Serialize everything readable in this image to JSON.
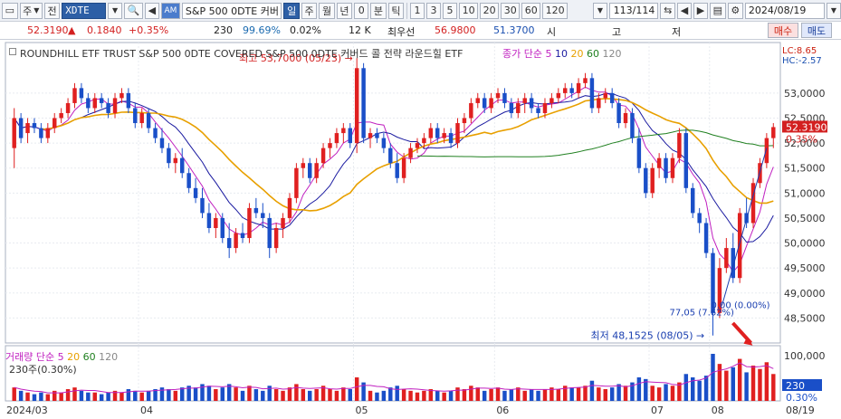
{
  "toolbar": {
    "period_week": "주",
    "prev": "전",
    "code": "XDTE",
    "name": "S&P 500 0DTE 커버",
    "am_badge": "AM",
    "periods": [
      "일",
      "주",
      "월",
      "년",
      "0",
      "분",
      "틱"
    ],
    "intervals": [
      "1",
      "3",
      "5",
      "10",
      "20",
      "30",
      "60",
      "120"
    ],
    "count": "113/114",
    "date": "2024/08/19"
  },
  "info": {
    "price": "52.3190",
    "change_arrow": "▲",
    "change": "0.1840",
    "change_pct": "+0.35%",
    "volume": "230",
    "ratio": "99.69%",
    "turnover": "0.02%",
    "k": "12 K",
    "best_label": "최우선",
    "ask": "56.9800",
    "bid": "51.3700",
    "col_open": "시",
    "col_high": "고",
    "col_low": "저",
    "buy": "매수",
    "sell": "매도"
  },
  "chart_data": {
    "type": "candlestick",
    "title": "ROUNDHILL ETF TRUST S&P 500 0DTE COVERED  S&P 500 0DTE 커버드 콜 전략 라운드힐 ETF",
    "ma_legend": {
      "label": "종가 단순",
      "periods": [
        "5",
        "10",
        "20",
        "60",
        "120"
      ],
      "colors": [
        "#c020c0",
        "#1a1aa0",
        "#e8a000",
        "#208020",
        "#888888"
      ]
    },
    "lc": "LC:8.65",
    "hc": "HC:-2.57",
    "current_price_tag": "52.3190",
    "current_pct_tag": "0.35%",
    "y_ticks": [
      "53,0000",
      "52,5000",
      "52,0000",
      "51,5000",
      "51,0000",
      "50,5000",
      "50,0000",
      "49,5000",
      "49,0000",
      "48,5000"
    ],
    "ylim": [
      48.0,
      53.65
    ],
    "x_ticks": [
      "2024/03",
      "04",
      "05",
      "06",
      "07",
      "08",
      "08/19"
    ],
    "annot_high": "최고 53,7000 (05/23)",
    "annot_low": "최저 48,1525 (08/05)",
    "annot_mid": "77,05 (7.62%)",
    "annot_zero": "0.00 (0.00%)",
    "candles": [
      [
        51.9,
        52.7,
        51.5,
        52.5
      ],
      [
        52.5,
        52.6,
        52.0,
        52.1
      ],
      [
        52.2,
        52.5,
        52.0,
        52.4
      ],
      [
        52.4,
        52.5,
        52.2,
        52.3
      ],
      [
        52.3,
        52.4,
        52.0,
        52.1
      ],
      [
        52.1,
        52.4,
        52.0,
        52.3
      ],
      [
        52.3,
        52.6,
        52.2,
        52.5
      ],
      [
        52.5,
        52.7,
        52.4,
        52.6
      ],
      [
        52.6,
        52.9,
        52.5,
        52.8
      ],
      [
        52.8,
        53.2,
        52.7,
        53.1
      ],
      [
        53.1,
        53.2,
        52.8,
        52.9
      ],
      [
        52.9,
        53.0,
        52.6,
        52.7
      ],
      [
        52.7,
        53.0,
        52.6,
        52.9
      ],
      [
        52.9,
        53.0,
        52.7,
        52.8
      ],
      [
        52.8,
        52.9,
        52.5,
        52.6
      ],
      [
        52.6,
        53.0,
        52.5,
        52.9
      ],
      [
        52.9,
        53.1,
        52.8,
        53.0
      ],
      [
        53.0,
        53.1,
        52.6,
        52.7
      ],
      [
        52.7,
        52.8,
        52.3,
        52.4
      ],
      [
        52.4,
        52.7,
        52.3,
        52.6
      ],
      [
        52.6,
        52.7,
        52.2,
        52.3
      ],
      [
        52.3,
        52.4,
        52.0,
        52.1
      ],
      [
        52.1,
        52.3,
        51.8,
        51.9
      ],
      [
        51.9,
        52.0,
        51.5,
        51.6
      ],
      [
        51.6,
        51.8,
        51.4,
        51.7
      ],
      [
        51.7,
        51.9,
        51.3,
        51.4
      ],
      [
        51.4,
        51.5,
        51.0,
        51.1
      ],
      [
        51.1,
        51.3,
        50.8,
        50.9
      ],
      [
        50.9,
        51.1,
        50.5,
        50.6
      ],
      [
        50.6,
        50.8,
        50.2,
        50.3
      ],
      [
        50.3,
        50.6,
        50.1,
        50.5
      ],
      [
        50.5,
        50.6,
        50.0,
        50.1
      ],
      [
        50.1,
        50.4,
        49.7,
        49.9
      ],
      [
        49.9,
        50.3,
        49.8,
        50.2
      ],
      [
        50.2,
        50.4,
        50.0,
        50.1
      ],
      [
        50.1,
        50.8,
        50.0,
        50.7
      ],
      [
        50.7,
        50.9,
        50.5,
        50.6
      ],
      [
        50.6,
        50.8,
        50.3,
        50.5
      ],
      [
        50.5,
        50.6,
        49.7,
        49.9
      ],
      [
        49.9,
        50.4,
        49.8,
        50.3
      ],
      [
        50.3,
        50.6,
        50.1,
        50.5
      ],
      [
        50.5,
        51.0,
        50.4,
        50.9
      ],
      [
        50.9,
        51.6,
        50.8,
        51.5
      ],
      [
        51.5,
        51.7,
        51.3,
        51.6
      ],
      [
        51.6,
        51.7,
        51.2,
        51.3
      ],
      [
        51.3,
        51.7,
        51.2,
        51.6
      ],
      [
        51.6,
        52.0,
        51.5,
        51.9
      ],
      [
        51.9,
        52.1,
        51.7,
        52.0
      ],
      [
        52.0,
        52.3,
        51.9,
        52.2
      ],
      [
        52.2,
        52.4,
        52.0,
        52.3
      ],
      [
        52.3,
        52.4,
        51.9,
        52.0
      ],
      [
        52.0,
        53.7,
        51.8,
        53.5
      ],
      [
        53.5,
        53.6,
        52.0,
        52.1
      ],
      [
        52.1,
        52.3,
        51.9,
        52.2
      ],
      [
        52.2,
        52.3,
        52.0,
        52.1
      ],
      [
        52.1,
        52.2,
        51.8,
        51.9
      ],
      [
        51.9,
        52.0,
        51.5,
        51.6
      ],
      [
        51.6,
        51.8,
        51.2,
        51.3
      ],
      [
        51.3,
        51.8,
        51.2,
        51.7
      ],
      [
        51.7,
        52.0,
        51.6,
        51.9
      ],
      [
        51.9,
        52.1,
        51.8,
        52.0
      ],
      [
        52.0,
        52.2,
        51.9,
        52.1
      ],
      [
        52.1,
        52.4,
        52.0,
        52.3
      ],
      [
        52.3,
        52.4,
        52.0,
        52.1
      ],
      [
        52.1,
        52.3,
        52.0,
        52.2
      ],
      [
        52.2,
        52.3,
        51.9,
        52.0
      ],
      [
        52.0,
        52.5,
        51.9,
        52.4
      ],
      [
        52.4,
        52.6,
        52.2,
        52.5
      ],
      [
        52.5,
        52.9,
        52.4,
        52.8
      ],
      [
        52.8,
        53.0,
        52.7,
        52.9
      ],
      [
        52.9,
        53.0,
        52.6,
        52.7
      ],
      [
        52.7,
        53.0,
        52.6,
        52.9
      ],
      [
        52.9,
        53.1,
        52.8,
        53.0
      ],
      [
        53.0,
        53.1,
        52.7,
        52.8
      ],
      [
        52.8,
        52.9,
        52.5,
        52.6
      ],
      [
        52.6,
        52.9,
        52.5,
        52.8
      ],
      [
        52.8,
        53.0,
        52.6,
        52.9
      ],
      [
        52.9,
        53.0,
        52.6,
        52.7
      ],
      [
        52.7,
        52.8,
        52.5,
        52.6
      ],
      [
        52.6,
        52.9,
        52.5,
        52.8
      ],
      [
        52.8,
        53.0,
        52.7,
        52.9
      ],
      [
        52.9,
        53.1,
        52.8,
        53.0
      ],
      [
        53.0,
        53.2,
        52.9,
        53.1
      ],
      [
        53.1,
        53.2,
        52.9,
        53.0
      ],
      [
        53.0,
        53.3,
        52.9,
        53.2
      ],
      [
        53.2,
        53.4,
        53.1,
        53.3
      ],
      [
        53.3,
        53.4,
        52.6,
        52.7
      ],
      [
        52.7,
        53.0,
        52.6,
        52.9
      ],
      [
        52.9,
        53.1,
        52.8,
        53.0
      ],
      [
        53.0,
        53.1,
        52.7,
        52.8
      ],
      [
        52.8,
        52.9,
        52.3,
        52.4
      ],
      [
        52.4,
        52.7,
        52.3,
        52.6
      ],
      [
        52.6,
        52.7,
        52.0,
        52.1
      ],
      [
        52.1,
        52.3,
        51.4,
        51.5
      ],
      [
        51.5,
        51.6,
        50.9,
        51.0
      ],
      [
        51.0,
        51.6,
        50.9,
        51.5
      ],
      [
        51.5,
        51.8,
        51.3,
        51.7
      ],
      [
        51.7,
        51.8,
        51.2,
        51.3
      ],
      [
        51.3,
        51.8,
        51.2,
        51.7
      ],
      [
        51.7,
        52.3,
        51.6,
        52.2
      ],
      [
        52.2,
        52.3,
        51.0,
        51.1
      ],
      [
        51.1,
        51.2,
        50.5,
        50.6
      ],
      [
        50.6,
        50.7,
        50.2,
        50.4
      ],
      [
        50.4,
        50.5,
        49.7,
        49.8
      ],
      [
        49.8,
        49.9,
        48.15,
        48.6
      ],
      [
        48.6,
        49.7,
        48.5,
        49.5
      ],
      [
        49.5,
        50.1,
        49.4,
        49.9
      ],
      [
        49.9,
        50.2,
        49.2,
        49.3
      ],
      [
        49.3,
        50.7,
        49.2,
        50.6
      ],
      [
        50.6,
        50.9,
        50.3,
        50.4
      ],
      [
        50.4,
        51.3,
        50.3,
        51.2
      ],
      [
        51.2,
        51.7,
        51.1,
        51.6
      ],
      [
        51.6,
        52.2,
        51.5,
        52.1
      ],
      [
        52.1,
        52.4,
        51.9,
        52.32
      ]
    ],
    "volumes": [
      8,
      6,
      5,
      4,
      5,
      4,
      6,
      5,
      7,
      8,
      6,
      5,
      5,
      4,
      5,
      6,
      5,
      7,
      6,
      5,
      6,
      7,
      8,
      7,
      6,
      8,
      9,
      8,
      10,
      9,
      7,
      8,
      10,
      8,
      6,
      9,
      7,
      6,
      9,
      7,
      6,
      8,
      10,
      7,
      6,
      7,
      9,
      7,
      6,
      8,
      7,
      14,
      11,
      6,
      5,
      6,
      8,
      9,
      7,
      6,
      5,
      6,
      7,
      6,
      5,
      6,
      8,
      7,
      9,
      8,
      6,
      7,
      8,
      6,
      7,
      8,
      6,
      7,
      6,
      7,
      8,
      7,
      9,
      8,
      8,
      9,
      12,
      8,
      7,
      8,
      10,
      9,
      11,
      14,
      13,
      9,
      8,
      10,
      9,
      11,
      16,
      14,
      12,
      15,
      28,
      22,
      18,
      20,
      25,
      17,
      21,
      19,
      23,
      16
    ],
    "vol_legend": {
      "label": "거래량 단순",
      "periods": [
        "5",
        "20",
        "60",
        "120"
      ],
      "colors": [
        "#c020c0",
        "#e8a000",
        "#208020",
        "#888888"
      ]
    },
    "vol_sub": "230주(0.30%)",
    "vol_ticks": [
      "100,000",
      "50,000"
    ],
    "vol_tag": "230",
    "vol_pct_tag": "0.30%"
  }
}
